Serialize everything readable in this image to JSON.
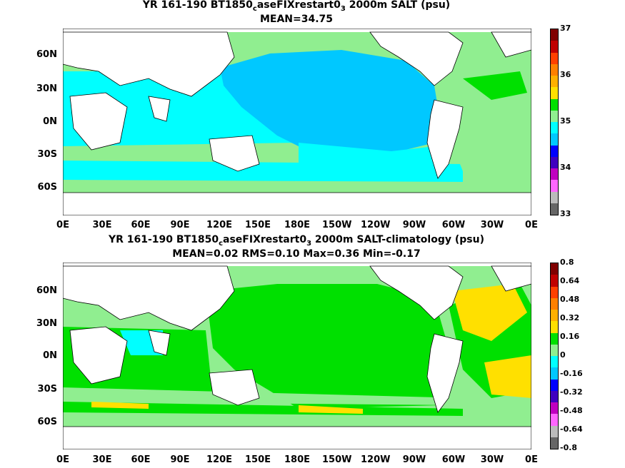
{
  "panels": [
    {
      "title_pre": "YR 161-190 BT1850",
      "title_sub1": "c",
      "title_mid": "aseFIXrestart0",
      "title_sub2": "3",
      "title_post": " 2000m SALT (psu)",
      "stats": "MEAN=34.75",
      "colorbar": {
        "ticks": [
          "37",
          "36",
          "35",
          "34",
          "33"
        ],
        "colors": [
          "#800000",
          "#c00000",
          "#ff4000",
          "#ff8000",
          "#ffb000",
          "#ffe000",
          "#00e000",
          "#90ee90",
          "#00ffff",
          "#00c8ff",
          "#0000ff",
          "#4000c0",
          "#c000c0",
          "#ff66ff",
          "#bbbbbb",
          "#666666"
        ]
      }
    },
    {
      "title_pre": "YR 161-190 BT1850",
      "title_sub1": "c",
      "title_mid": "aseFIXrestart0",
      "title_sub2": "3",
      "title_post": " 2000m SALT-climatology (psu)",
      "stats": "MEAN=0.02   RMS=0.10   Max=0.36   Min=-0.17",
      "colorbar": {
        "ticks": [
          "0.8",
          "0.64",
          "0.48",
          "0.32",
          "0.16",
          "0",
          "-0.16",
          "-0.32",
          "-0.48",
          "-0.64",
          "-0.8"
        ],
        "colors": [
          "#800000",
          "#c00000",
          "#ff4000",
          "#ff8000",
          "#ffb000",
          "#ffe000",
          "#00e000",
          "#90ee90",
          "#00ffff",
          "#00c8ff",
          "#0000ff",
          "#4000c0",
          "#c000c0",
          "#ff66ff",
          "#bbbbbb",
          "#666666"
        ]
      }
    }
  ],
  "lat_labels": [
    "60N",
    "30N",
    "0N",
    "30S",
    "60S"
  ],
  "lon_labels": [
    "0E",
    "30E",
    "60E",
    "90E",
    "120E",
    "150E",
    "180E",
    "150W",
    "120W",
    "90W",
    "60W",
    "30W",
    "0E"
  ]
}
